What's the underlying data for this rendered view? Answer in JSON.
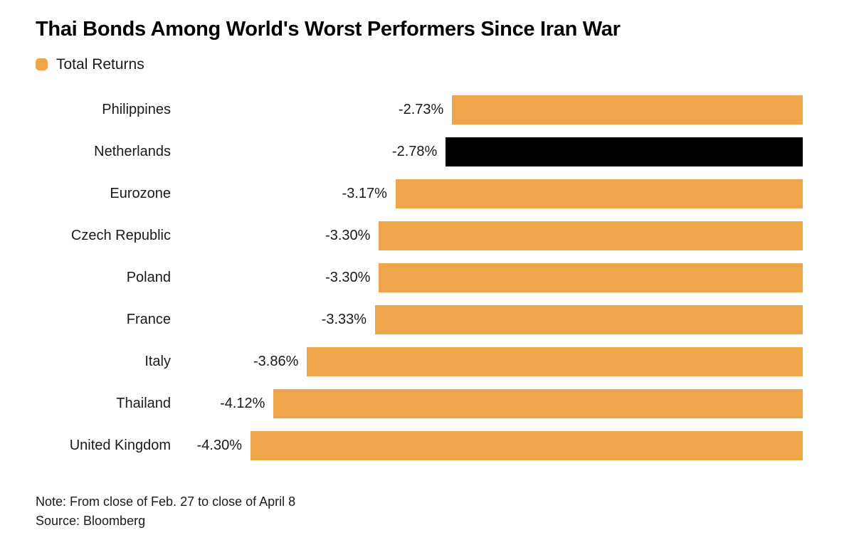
{
  "title": "Thai Bonds Among World's Worst Performers Since Iran War",
  "legend": {
    "label": "Total Returns",
    "swatch_color": "#efa64a"
  },
  "colors": {
    "bar": "#efa64a",
    "highlight": "#000000",
    "text": "#1a1a1a"
  },
  "chart_data": {
    "type": "bar",
    "orientation": "horizontal",
    "title": "Thai Bonds Among World's Worst Performers Since Iran War",
    "legend_entries": [
      "Total Returns"
    ],
    "categories": [
      "Philippines",
      "Netherlands",
      "Eurozone",
      "Czech Republic",
      "Poland",
      "France",
      "Italy",
      "Thailand",
      "United Kingdom"
    ],
    "values": [
      -2.73,
      -2.78,
      -3.17,
      -3.3,
      -3.3,
      -3.33,
      -3.86,
      -4.12,
      -4.3
    ],
    "value_labels": [
      "-2.73%",
      "-2.78%",
      "-3.17%",
      "-3.30%",
      "-3.30%",
      "-3.33%",
      "-3.86%",
      "-4.12%",
      "-4.30%"
    ],
    "highlight_index": 1,
    "highlight_category": "Netherlands",
    "bar_color": "#efa64a",
    "highlight_color": "#000000",
    "baseline": "zero at right edge; bars extend left for negative values",
    "value_axis_range": [
      -4.3,
      0
    ],
    "grid": false,
    "legend_position": "top-left"
  },
  "footer": {
    "note": "Note: From close of Feb. 27 to close of April 8",
    "source": "Source: Bloomberg"
  }
}
